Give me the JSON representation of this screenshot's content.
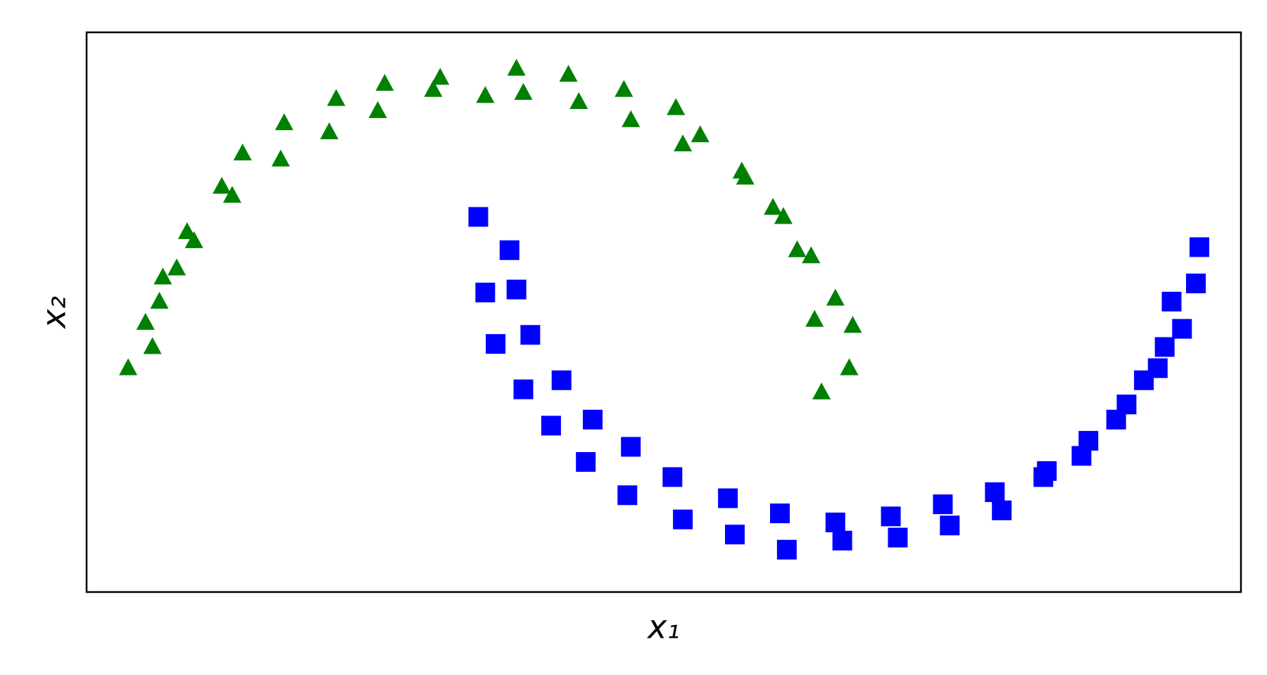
{
  "chart_data": {
    "type": "scatter",
    "xlabel": "x₁",
    "ylabel": "x₂",
    "xlim": [
      -1.17,
      2.16
    ],
    "ylim": [
      -0.69,
      1.16
    ],
    "series": [
      {
        "color": "#008000",
        "marker": "triangle",
        "x": [
          1.03,
          0.95,
          1.04,
          0.93,
          0.99,
          0.88,
          0.92,
          0.81,
          0.84,
          0.72,
          0.73,
          0.6,
          0.55,
          0.53,
          0.4,
          0.38,
          0.25,
          0.22,
          0.09,
          0.07,
          -0.02,
          -0.15,
          -0.17,
          -0.31,
          -0.33,
          -0.45,
          -0.47,
          -0.6,
          -0.61,
          -0.72,
          -0.75,
          -0.78,
          -0.88,
          -0.86,
          -0.95,
          -0.91,
          -1.0,
          -0.96,
          -1.05,
          -0.98
        ],
        "values": [
          0.05,
          -0.03,
          0.19,
          0.21,
          0.28,
          0.44,
          0.42,
          0.58,
          0.55,
          0.7,
          0.68,
          0.82,
          0.79,
          0.91,
          0.87,
          0.97,
          0.93,
          1.02,
          0.96,
          1.04,
          0.95,
          1.01,
          0.97,
          0.99,
          0.9,
          0.94,
          0.83,
          0.86,
          0.74,
          0.76,
          0.62,
          0.65,
          0.5,
          0.47,
          0.35,
          0.38,
          0.2,
          0.27,
          0.05,
          0.12
        ]
      },
      {
        "color": "#0000ff",
        "marker": "square",
        "x": [
          -0.04,
          0.05,
          -0.02,
          0.07,
          0.01,
          0.11,
          0.09,
          0.2,
          0.17,
          0.29,
          0.27,
          0.4,
          0.39,
          0.52,
          0.55,
          0.68,
          0.7,
          0.83,
          0.85,
          0.99,
          1.01,
          1.15,
          1.17,
          1.3,
          1.32,
          1.45,
          1.47,
          1.6,
          1.59,
          1.72,
          1.7,
          1.83,
          1.8,
          1.92,
          1.88,
          1.99,
          1.94,
          2.03,
          1.96,
          2.04
        ],
        "values": [
          0.55,
          0.44,
          0.3,
          0.31,
          0.13,
          0.16,
          -0.02,
          0.01,
          -0.14,
          -0.12,
          -0.26,
          -0.21,
          -0.37,
          -0.31,
          -0.45,
          -0.38,
          -0.5,
          -0.43,
          -0.55,
          -0.46,
          -0.52,
          -0.44,
          -0.51,
          -0.4,
          -0.47,
          -0.36,
          -0.42,
          -0.29,
          -0.31,
          -0.19,
          -0.24,
          -0.07,
          -0.12,
          0.05,
          0.01,
          0.18,
          0.12,
          0.33,
          0.27,
          0.45
        ]
      }
    ]
  }
}
